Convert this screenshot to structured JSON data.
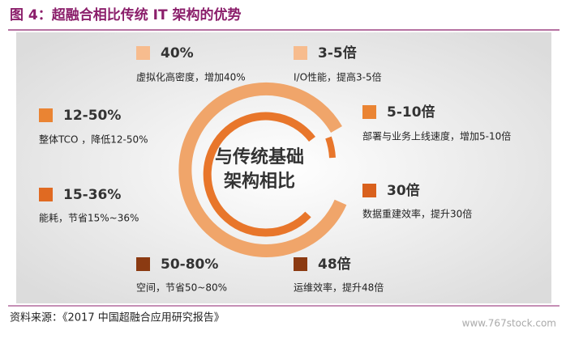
{
  "header": {
    "title": "图 4：超融合相比传统 IT 架构的优势"
  },
  "center": {
    "lines": [
      "与传统基础",
      "架构相比"
    ]
  },
  "items": [
    {
      "value": "40%",
      "description": "虚拟化高密度，增加40%"
    },
    {
      "value": "3-5倍",
      "description": "I/O性能，提高3-5倍"
    },
    {
      "value": "12-50%",
      "description": "整体TCO ，降低12-50%"
    },
    {
      "value": "5-10倍",
      "description": "部署与业务上线速度，增加5-10倍"
    },
    {
      "value": "15-36%",
      "description": "能耗，节省15%~36%"
    },
    {
      "value": "30倍",
      "description": "数据重建效率，提升30倍"
    },
    {
      "value": "50-80%",
      "description": "空间，节省50~80%"
    },
    {
      "value": "48倍",
      "description": "运维效率，提升48倍"
    }
  ],
  "footer": {
    "source": "资料来源：《2017 中国超融合应用研究报告》",
    "watermark": "www.767stock.com"
  }
}
